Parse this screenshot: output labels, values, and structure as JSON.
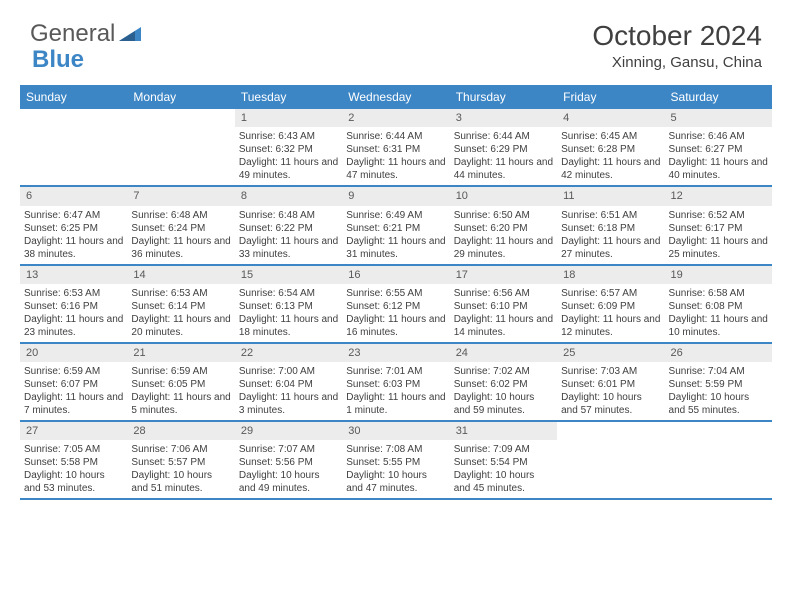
{
  "logo": {
    "part1": "General",
    "part2": "Blue"
  },
  "title": "October 2024",
  "location": "Xinning, Gansu, China",
  "day_names": [
    "Sunday",
    "Monday",
    "Tuesday",
    "Wednesday",
    "Thursday",
    "Friday",
    "Saturday"
  ],
  "colors": {
    "header_bg": "#3d86c6",
    "header_text": "#ffffff",
    "daynum_bg": "#ececec",
    "text": "#404040",
    "border": "#3d86c6"
  },
  "weeks": [
    [
      null,
      null,
      {
        "n": "1",
        "sr": "Sunrise: 6:43 AM",
        "ss": "Sunset: 6:32 PM",
        "dl": "Daylight: 11 hours and 49 minutes."
      },
      {
        "n": "2",
        "sr": "Sunrise: 6:44 AM",
        "ss": "Sunset: 6:31 PM",
        "dl": "Daylight: 11 hours and 47 minutes."
      },
      {
        "n": "3",
        "sr": "Sunrise: 6:44 AM",
        "ss": "Sunset: 6:29 PM",
        "dl": "Daylight: 11 hours and 44 minutes."
      },
      {
        "n": "4",
        "sr": "Sunrise: 6:45 AM",
        "ss": "Sunset: 6:28 PM",
        "dl": "Daylight: 11 hours and 42 minutes."
      },
      {
        "n": "5",
        "sr": "Sunrise: 6:46 AM",
        "ss": "Sunset: 6:27 PM",
        "dl": "Daylight: 11 hours and 40 minutes."
      }
    ],
    [
      {
        "n": "6",
        "sr": "Sunrise: 6:47 AM",
        "ss": "Sunset: 6:25 PM",
        "dl": "Daylight: 11 hours and 38 minutes."
      },
      {
        "n": "7",
        "sr": "Sunrise: 6:48 AM",
        "ss": "Sunset: 6:24 PM",
        "dl": "Daylight: 11 hours and 36 minutes."
      },
      {
        "n": "8",
        "sr": "Sunrise: 6:48 AM",
        "ss": "Sunset: 6:22 PM",
        "dl": "Daylight: 11 hours and 33 minutes."
      },
      {
        "n": "9",
        "sr": "Sunrise: 6:49 AM",
        "ss": "Sunset: 6:21 PM",
        "dl": "Daylight: 11 hours and 31 minutes."
      },
      {
        "n": "10",
        "sr": "Sunrise: 6:50 AM",
        "ss": "Sunset: 6:20 PM",
        "dl": "Daylight: 11 hours and 29 minutes."
      },
      {
        "n": "11",
        "sr": "Sunrise: 6:51 AM",
        "ss": "Sunset: 6:18 PM",
        "dl": "Daylight: 11 hours and 27 minutes."
      },
      {
        "n": "12",
        "sr": "Sunrise: 6:52 AM",
        "ss": "Sunset: 6:17 PM",
        "dl": "Daylight: 11 hours and 25 minutes."
      }
    ],
    [
      {
        "n": "13",
        "sr": "Sunrise: 6:53 AM",
        "ss": "Sunset: 6:16 PM",
        "dl": "Daylight: 11 hours and 23 minutes."
      },
      {
        "n": "14",
        "sr": "Sunrise: 6:53 AM",
        "ss": "Sunset: 6:14 PM",
        "dl": "Daylight: 11 hours and 20 minutes."
      },
      {
        "n": "15",
        "sr": "Sunrise: 6:54 AM",
        "ss": "Sunset: 6:13 PM",
        "dl": "Daylight: 11 hours and 18 minutes."
      },
      {
        "n": "16",
        "sr": "Sunrise: 6:55 AM",
        "ss": "Sunset: 6:12 PM",
        "dl": "Daylight: 11 hours and 16 minutes."
      },
      {
        "n": "17",
        "sr": "Sunrise: 6:56 AM",
        "ss": "Sunset: 6:10 PM",
        "dl": "Daylight: 11 hours and 14 minutes."
      },
      {
        "n": "18",
        "sr": "Sunrise: 6:57 AM",
        "ss": "Sunset: 6:09 PM",
        "dl": "Daylight: 11 hours and 12 minutes."
      },
      {
        "n": "19",
        "sr": "Sunrise: 6:58 AM",
        "ss": "Sunset: 6:08 PM",
        "dl": "Daylight: 11 hours and 10 minutes."
      }
    ],
    [
      {
        "n": "20",
        "sr": "Sunrise: 6:59 AM",
        "ss": "Sunset: 6:07 PM",
        "dl": "Daylight: 11 hours and 7 minutes."
      },
      {
        "n": "21",
        "sr": "Sunrise: 6:59 AM",
        "ss": "Sunset: 6:05 PM",
        "dl": "Daylight: 11 hours and 5 minutes."
      },
      {
        "n": "22",
        "sr": "Sunrise: 7:00 AM",
        "ss": "Sunset: 6:04 PM",
        "dl": "Daylight: 11 hours and 3 minutes."
      },
      {
        "n": "23",
        "sr": "Sunrise: 7:01 AM",
        "ss": "Sunset: 6:03 PM",
        "dl": "Daylight: 11 hours and 1 minute."
      },
      {
        "n": "24",
        "sr": "Sunrise: 7:02 AM",
        "ss": "Sunset: 6:02 PM",
        "dl": "Daylight: 10 hours and 59 minutes."
      },
      {
        "n": "25",
        "sr": "Sunrise: 7:03 AM",
        "ss": "Sunset: 6:01 PM",
        "dl": "Daylight: 10 hours and 57 minutes."
      },
      {
        "n": "26",
        "sr": "Sunrise: 7:04 AM",
        "ss": "Sunset: 5:59 PM",
        "dl": "Daylight: 10 hours and 55 minutes."
      }
    ],
    [
      {
        "n": "27",
        "sr": "Sunrise: 7:05 AM",
        "ss": "Sunset: 5:58 PM",
        "dl": "Daylight: 10 hours and 53 minutes."
      },
      {
        "n": "28",
        "sr": "Sunrise: 7:06 AM",
        "ss": "Sunset: 5:57 PM",
        "dl": "Daylight: 10 hours and 51 minutes."
      },
      {
        "n": "29",
        "sr": "Sunrise: 7:07 AM",
        "ss": "Sunset: 5:56 PM",
        "dl": "Daylight: 10 hours and 49 minutes."
      },
      {
        "n": "30",
        "sr": "Sunrise: 7:08 AM",
        "ss": "Sunset: 5:55 PM",
        "dl": "Daylight: 10 hours and 47 minutes."
      },
      {
        "n": "31",
        "sr": "Sunrise: 7:09 AM",
        "ss": "Sunset: 5:54 PM",
        "dl": "Daylight: 10 hours and 45 minutes."
      },
      null,
      null
    ]
  ]
}
